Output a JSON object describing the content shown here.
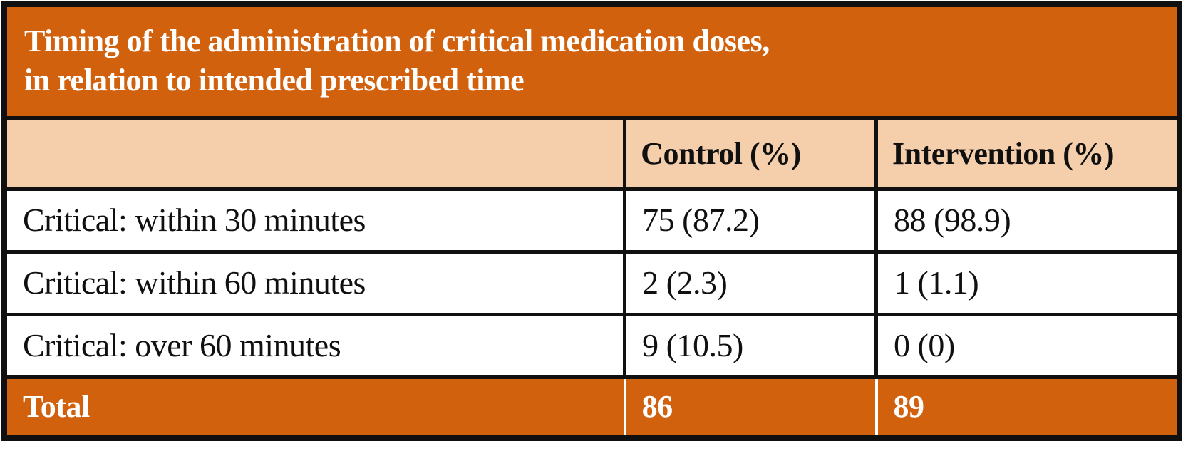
{
  "table": {
    "title": "Timing of the administration of critical medication doses,\nin relation to intended prescribed time",
    "columns": [
      "",
      "Control (%)",
      "Intervention (%)"
    ],
    "rows": [
      {
        "label": "Critical: within 30 minutes",
        "control": "75 (87.2)",
        "intervention": "88 (98.9)"
      },
      {
        "label": "Critical: within 60 minutes",
        "control": "2 (2.3)",
        "intervention": "1 (1.1)"
      },
      {
        "label": "Critical: over 60 minutes",
        "control": "9 (10.5)",
        "intervention": "0 (0)"
      }
    ],
    "total": {
      "label": "Total",
      "control": "86",
      "intervention": "89"
    }
  },
  "colors": {
    "band_orange": "#d2610e",
    "header_peach": "#f5ceac",
    "border_black": "#101010",
    "title_text": "#ffffff",
    "body_text": "#101010"
  },
  "chart_data": {
    "type": "table",
    "title": "Timing of the administration of critical medication doses, in relation to intended prescribed time",
    "columns": [
      "",
      "Control (%)",
      "Intervention (%)"
    ],
    "rows": [
      [
        "Critical: within 30 minutes",
        "75 (87.2)",
        "88 (98.9)"
      ],
      [
        "Critical: within 60 minutes",
        "2 (2.3)",
        "1 (1.1)"
      ],
      [
        "Critical: over 60 minutes",
        "9 (10.5)",
        "0 (0)"
      ],
      [
        "Total",
        "86",
        "89"
      ]
    ],
    "notes": {
      "control_counts": [
        75,
        2,
        9
      ],
      "control_percents": [
        87.2,
        2.3,
        10.5
      ],
      "intervention_counts": [
        88,
        1,
        0
      ],
      "intervention_percents": [
        98.9,
        1.1,
        0
      ],
      "control_total": 86,
      "intervention_total": 89
    }
  }
}
